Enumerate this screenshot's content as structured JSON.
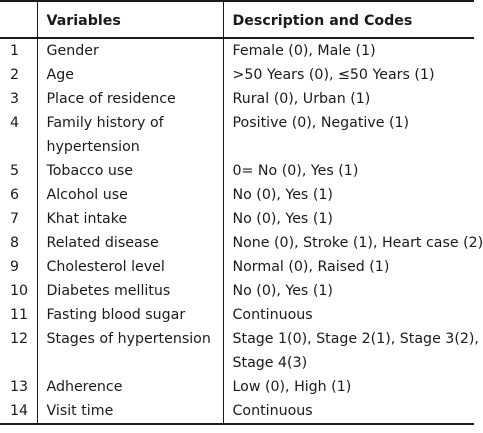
{
  "table": {
    "headers": {
      "num": "",
      "variable": "Variables",
      "description": "Description and Codes"
    },
    "rows": [
      {
        "num": "1",
        "variable": [
          "Gender"
        ],
        "description": [
          "Female (0), Male (1)"
        ]
      },
      {
        "num": "2",
        "variable": [
          "Age"
        ],
        "description": [
          ">50 Years (0), ≤50 Years (1)"
        ]
      },
      {
        "num": "3",
        "variable": [
          "Place of residence"
        ],
        "description": [
          "Rural (0), Urban (1)"
        ]
      },
      {
        "num": "4",
        "variable": [
          "Family history of",
          "hypertension"
        ],
        "description": [
          "Positive (0), Negative (1)"
        ]
      },
      {
        "num": "5",
        "variable": [
          "Tobacco use"
        ],
        "description": [
          "0= No (0), Yes (1)"
        ]
      },
      {
        "num": "6",
        "variable": [
          "Alcohol use"
        ],
        "description": [
          "No (0), Yes (1)"
        ]
      },
      {
        "num": "7",
        "variable": [
          "Khat intake"
        ],
        "description": [
          "No (0), Yes (1)"
        ]
      },
      {
        "num": "8",
        "variable": [
          "Related disease"
        ],
        "description": [
          "None (0), Stroke (1), Heart case (2)"
        ]
      },
      {
        "num": "9",
        "variable": [
          "Cholesterol level"
        ],
        "description": [
          "Normal (0), Raised (1)"
        ]
      },
      {
        "num": "10",
        "variable": [
          "Diabetes mellitus"
        ],
        "description": [
          "No (0), Yes (1)"
        ]
      },
      {
        "num": "11",
        "variable": [
          "Fasting blood sugar"
        ],
        "description": [
          "Continuous"
        ]
      },
      {
        "num": "12",
        "variable": [
          "Stages of hypertension"
        ],
        "description": [
          "Stage 1(0), Stage 2(1), Stage 3(2),",
          "Stage 4(3)"
        ]
      },
      {
        "num": "13",
        "variable": [
          "Adherence"
        ],
        "description": [
          "Low (0), High (1)"
        ]
      },
      {
        "num": "14",
        "variable": [
          "Visit time"
        ],
        "description": [
          "Continuous"
        ]
      }
    ]
  }
}
